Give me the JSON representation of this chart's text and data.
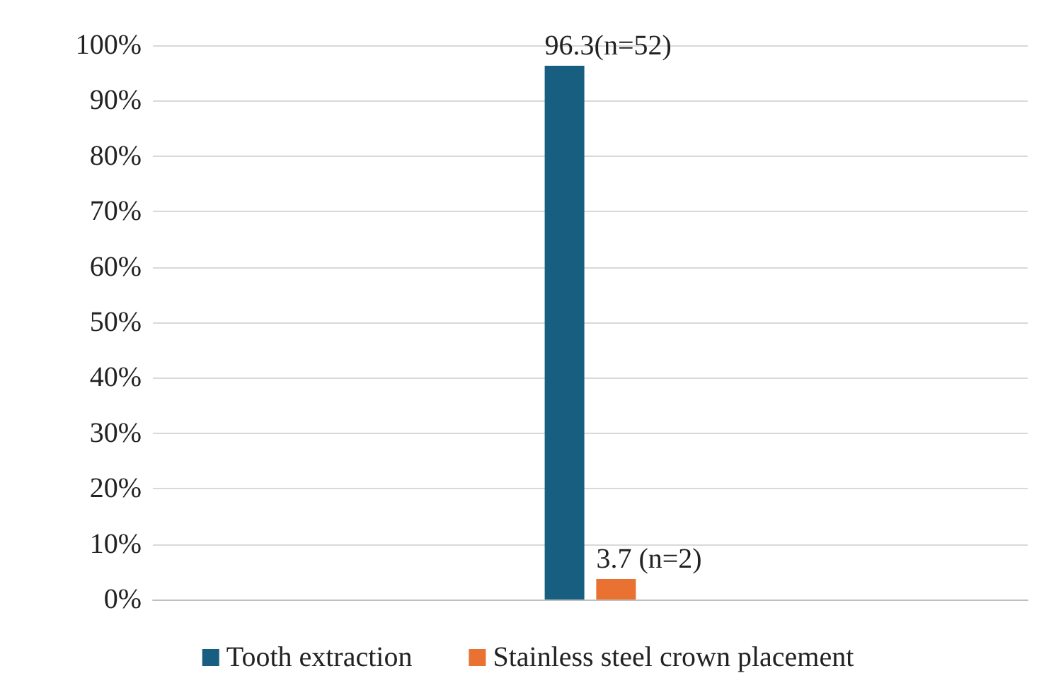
{
  "chart_data": {
    "type": "bar",
    "categories": [
      null
    ],
    "series": [
      {
        "name": "Tooth extraction",
        "color": "#175e80",
        "values": [
          96.3
        ],
        "value_labels": [
          "96.3(n=52)"
        ]
      },
      {
        "name": "Stainless steel crown placement",
        "color": "#e97132",
        "values": [
          3.7
        ],
        "value_labels": [
          "3.7 (n=2)"
        ]
      }
    ],
    "ylim": [
      0,
      100
    ],
    "yticks": [
      {
        "value": 0,
        "label": "0%"
      },
      {
        "value": 10,
        "label": "10%"
      },
      {
        "value": 20,
        "label": "20%"
      },
      {
        "value": 30,
        "label": "30%"
      },
      {
        "value": 40,
        "label": "40%"
      },
      {
        "value": 50,
        "label": "50%"
      },
      {
        "value": 60,
        "label": "60%"
      },
      {
        "value": 70,
        "label": "70%"
      },
      {
        "value": 80,
        "label": "80%"
      },
      {
        "value": 90,
        "label": "90%"
      },
      {
        "value": 100,
        "label": "100%"
      }
    ],
    "grid": "y",
    "legend": "bottom"
  }
}
